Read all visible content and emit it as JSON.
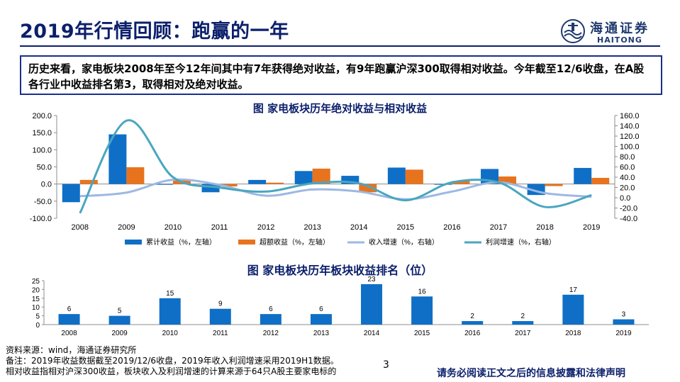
{
  "title": "2019年行情回顾：跑赢的一年",
  "logo": {
    "cn": "海通证券",
    "en": "HAITONG"
  },
  "summary": "历史来看，家电板块2008年至今12年间其中有7年获得绝对收益，有9年跑赢沪深300取得相对收益。今年截至12/6收盘，在A股各行业中收益排名第3，取得相对及绝对收益。",
  "chart_data": [
    {
      "type": "bar",
      "title": "图  家电板块历年绝对收益与相对收益",
      "categories": [
        "2008",
        "2009",
        "2010",
        "2011",
        "2012",
        "2013",
        "2014",
        "2015",
        "2016",
        "2017",
        "2018",
        "2019"
      ],
      "series": [
        {
          "name": "累计收益（%，左轴）",
          "type": "bar",
          "axis": "left",
          "color": "#0f6fc6",
          "values": [
            -53,
            145,
            -1,
            -24,
            12,
            38,
            24,
            48,
            -2,
            44,
            -32,
            47
          ]
        },
        {
          "name": "超额收益（%，左轴）",
          "type": "bar",
          "axis": "left",
          "color": "#e8731e",
          "values": [
            12,
            49,
            13,
            -7,
            4,
            45,
            -24,
            42,
            9,
            22,
            -6,
            18
          ]
        },
        {
          "name": "收入增速（%，右轴）",
          "type": "line",
          "axis": "right",
          "color": "#9db8e3",
          "values": [
            3,
            10,
            35,
            25,
            4,
            16,
            12,
            -3,
            12,
            30,
            9,
            2
          ]
        },
        {
          "name": "利润增速（%，右轴）",
          "type": "line",
          "axis": "right",
          "color": "#4aa6bf",
          "values": [
            -30,
            150,
            40,
            20,
            12,
            28,
            28,
            -5,
            30,
            30,
            -18,
            5
          ]
        }
      ],
      "left_axis": {
        "min": -100,
        "max": 200,
        "ticks": [
          "-100.0",
          "-50.0",
          "0.0",
          "50.0",
          "100.0",
          "150.0",
          "200.0"
        ]
      },
      "right_axis": {
        "min": -40,
        "max": 160,
        "ticks": [
          "-40.0",
          "-20.0",
          "0.0",
          "20.0",
          "40.0",
          "60.0",
          "80.0",
          "100.0",
          "120.0",
          "140.0",
          "160.0"
        ]
      },
      "legend": "bottom",
      "grid": false
    },
    {
      "type": "bar",
      "title": "图  家电板块历年板块收益排名（位）",
      "categories": [
        "2008",
        "2009",
        "2010",
        "2011",
        "2012",
        "2013",
        "2014",
        "2015",
        "2016",
        "2017",
        "2018",
        "2019"
      ],
      "values": [
        6,
        5,
        15,
        9,
        6,
        6,
        23,
        16,
        2,
        2,
        17,
        3
      ],
      "color": "#0f6fc6",
      "ylim": [
        0,
        25
      ],
      "ticks": [
        "0",
        "5",
        "10",
        "15",
        "20",
        "25"
      ],
      "data_labels": true,
      "grid": false
    }
  ],
  "notes": [
    "资料来源：wind，海通证券研究所",
    "备注：2019年收益数据截至2019/12/6收盘，2019年收入利润增速采用2019H1数据。",
    "相对收益指相对沪深300收益，板块收入及利润增速的计算来源于64只A股主要家电标的"
  ],
  "page_number": "3",
  "disclaimer": "请务必阅读正文之后的信息披露和法律声明"
}
